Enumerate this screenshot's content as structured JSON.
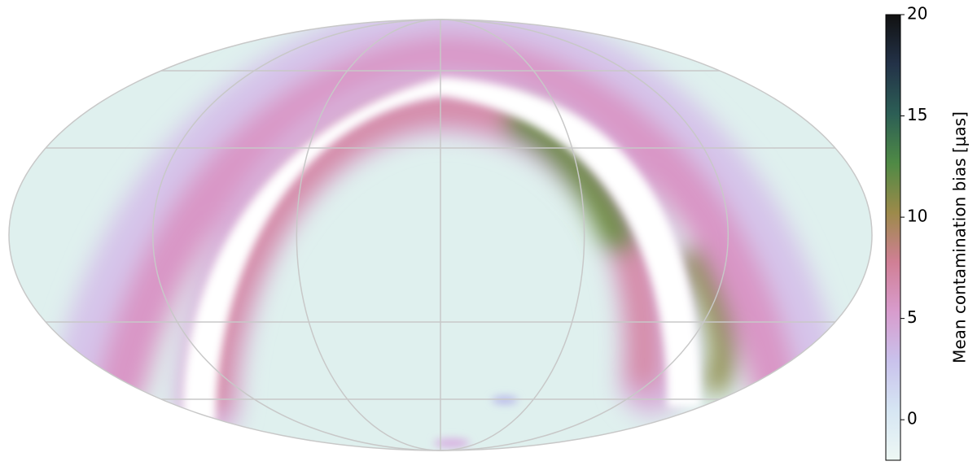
{
  "chart_data": {
    "type": "sky-map",
    "colorbar": {
      "label": "Mean contamination bias [μas]",
      "ylim": [
        -2,
        20
      ],
      "yticks": [
        0,
        5,
        10,
        15,
        20
      ],
      "colormap": [
        "#eef8f4",
        "#d6e6f3",
        "#c9c2ec",
        "#d89ccd",
        "#d07f95",
        "#9c8a4a",
        "#4f8a45",
        "#2c5e55",
        "#233248",
        "#111111"
      ]
    }
  }
}
